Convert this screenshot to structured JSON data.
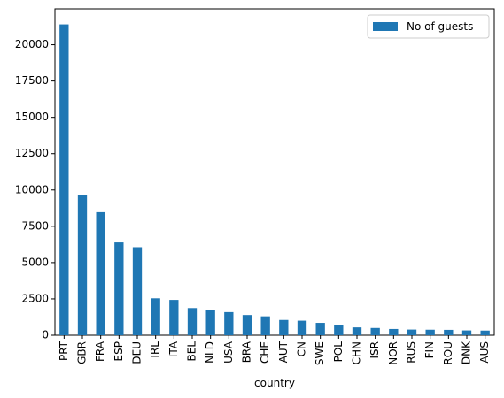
{
  "chart_data": {
    "type": "bar",
    "categories": [
      "PRT",
      "GBR",
      "FRA",
      "ESP",
      "DEU",
      "IRL",
      "ITA",
      "BEL",
      "NLD",
      "USA",
      "BRA",
      "CHE",
      "AUT",
      "CN",
      "SWE",
      "POL",
      "CHN",
      "ISR",
      "NOR",
      "RUS",
      "FIN",
      "ROU",
      "DNK",
      "AUS"
    ],
    "series": [
      {
        "name": "No of guests",
        "values": [
          21400,
          9680,
          8470,
          6390,
          6060,
          2540,
          2430,
          1870,
          1720,
          1590,
          1390,
          1300,
          1050,
          1000,
          850,
          700,
          540,
          500,
          430,
          390,
          380,
          370,
          330,
          320
        ]
      }
    ],
    "xlabel": "country",
    "ylabel": "",
    "ylim": [
      0,
      22470
    ],
    "yticks": [
      0,
      2500,
      5000,
      7500,
      10000,
      12500,
      15000,
      17500,
      20000
    ],
    "legend": "top-right",
    "grid": false,
    "colors": {
      "bar": "#1f77b4",
      "axis": "#000000",
      "background": "#ffffff"
    }
  }
}
